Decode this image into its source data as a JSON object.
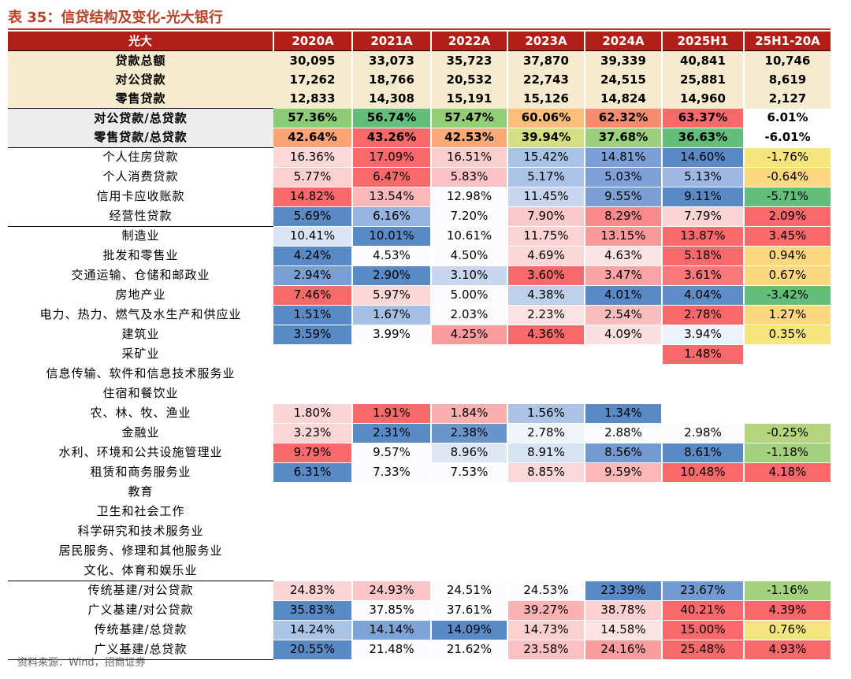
{
  "title": "表 35：信贷结构及变化-光大银行",
  "source": "资料来源：Wind，招商证券",
  "colors": {
    "header_bg": "#b21f19",
    "summary_bg": "#f7ebcf",
    "title_color": "#b5432b",
    "grey_label_bg": "#ececec"
  },
  "header": [
    "光大",
    "2020A",
    "2021A",
    "2022A",
    "2023A",
    "2024A",
    "2025H1",
    "25H1-20A"
  ],
  "rows": [
    {
      "label": "贷款总额",
      "kind": "sum",
      "cells": [
        [
          "30,095",
          ""
        ],
        [
          "33,073",
          ""
        ],
        [
          "35,723",
          ""
        ],
        [
          "37,870",
          ""
        ],
        [
          "39,339",
          ""
        ],
        [
          "40,841",
          ""
        ],
        [
          "10,746",
          ""
        ]
      ]
    },
    {
      "label": "对公贷款",
      "kind": "sum",
      "cells": [
        [
          "17,262",
          ""
        ],
        [
          "18,766",
          ""
        ],
        [
          "20,532",
          ""
        ],
        [
          "22,743",
          ""
        ],
        [
          "24,515",
          ""
        ],
        [
          "25,881",
          ""
        ],
        [
          "8,619",
          ""
        ]
      ]
    },
    {
      "label": "零售贷款",
      "kind": "sum",
      "cells": [
        [
          "12,833",
          ""
        ],
        [
          "14,308",
          ""
        ],
        [
          "15,191",
          ""
        ],
        [
          "15,126",
          ""
        ],
        [
          "14,824",
          ""
        ],
        [
          "14,960",
          ""
        ],
        [
          "2,127",
          ""
        ]
      ]
    },
    {
      "label": "对公贷款/总贷款",
      "kind": "grey",
      "cells": [
        [
          "57.36%",
          "#8dcb77"
        ],
        [
          "56.74%",
          "#63be7b"
        ],
        [
          "57.47%",
          "#93cd76"
        ],
        [
          "60.06%",
          "#fcbf7b"
        ],
        [
          "62.32%",
          "#f98b6f"
        ],
        [
          "63.37%",
          "#f8696b"
        ],
        [
          "6.01%",
          "#ffffff"
        ]
      ]
    },
    {
      "label": "零售贷款/总贷款",
      "kind": "grey",
      "cells": [
        [
          "42.64%",
          "#fba476"
        ],
        [
          "43.26%",
          "#f8696b"
        ],
        [
          "42.53%",
          "#fbaa77"
        ],
        [
          "39.94%",
          "#d3df82"
        ],
        [
          "37.68%",
          "#9cd07e"
        ],
        [
          "36.63%",
          "#63be7b"
        ],
        [
          "-6.01%",
          "#ffffff"
        ]
      ]
    },
    {
      "label": "个人住房贷款",
      "cells": [
        [
          "16.36%",
          "#fbd8d9"
        ],
        [
          "17.09%",
          "#f8696b"
        ],
        [
          "16.51%",
          "#fbcfd0"
        ],
        [
          "15.42%",
          "#a9c3e6"
        ],
        [
          "14.81%",
          "#7b9fd6"
        ],
        [
          "14.60%",
          "#5a8ac6"
        ],
        [
          "-1.76%",
          "#f6e57f"
        ]
      ]
    },
    {
      "label": "个人消费贷款",
      "cells": [
        [
          "5.77%",
          "#fbd0d1"
        ],
        [
          "6.47%",
          "#f8696b"
        ],
        [
          "5.83%",
          "#fbc3c5"
        ],
        [
          "5.17%",
          "#abc3e6"
        ],
        [
          "5.03%",
          "#7fa1d7"
        ],
        [
          "5.13%",
          "#9eb8e1"
        ],
        [
          "-0.64%",
          "#fed880"
        ]
      ]
    },
    {
      "label": "信用卡应收账款",
      "cells": [
        [
          "14.82%",
          "#f8696b"
        ],
        [
          "13.54%",
          "#fbb9ba"
        ],
        [
          "12.98%",
          "#fcfcff"
        ],
        [
          "11.45%",
          "#c7d6ee"
        ],
        [
          "9.55%",
          "#7c9fd6"
        ],
        [
          "9.11%",
          "#5a8ac6"
        ],
        [
          "-5.71%",
          "#63be7b"
        ]
      ]
    },
    {
      "label": "经营性贷款",
      "cells": [
        [
          "5.69%",
          "#5a8ac6"
        ],
        [
          "6.16%",
          "#97b3df"
        ],
        [
          "7.20%",
          "#fcfcff"
        ],
        [
          "7.90%",
          "#fbc9cb"
        ],
        [
          "8.29%",
          "#f98a8c"
        ],
        [
          "7.79%",
          "#fbd4d6"
        ],
        [
          "2.09%",
          "#f8696b"
        ]
      ]
    },
    {
      "label": "制造业",
      "kind": "sec",
      "cells": [
        [
          "10.41%",
          "#dbe4f4"
        ],
        [
          "10.01%",
          "#5a8ac6"
        ],
        [
          "10.61%",
          "#fcfcff"
        ],
        [
          "11.75%",
          "#fbd3d4"
        ],
        [
          "13.15%",
          "#f9999b"
        ],
        [
          "13.87%",
          "#f8696b"
        ],
        [
          "3.45%",
          "#f8696b"
        ]
      ]
    },
    {
      "label": "批发和零售业",
      "cells": [
        [
          "4.24%",
          "#5a8ac6"
        ],
        [
          "4.53%",
          "#fcfcff"
        ],
        [
          "4.50%",
          "#fcfcff"
        ],
        [
          "4.69%",
          "#fbd7d8"
        ],
        [
          "4.63%",
          "#fbe3e4"
        ],
        [
          "5.18%",
          "#f8696b"
        ],
        [
          "0.94%",
          "#fed880"
        ]
      ]
    },
    {
      "label": "交通运输、仓储和邮政业",
      "cells": [
        [
          "2.94%",
          "#7a9fd6"
        ],
        [
          "2.90%",
          "#5a8ac6"
        ],
        [
          "3.10%",
          "#c8d7ef"
        ],
        [
          "3.60%",
          "#f8696b"
        ],
        [
          "3.47%",
          "#fba3a5"
        ],
        [
          "3.61%",
          "#f9787a"
        ],
        [
          "0.67%",
          "#fed880"
        ]
      ]
    },
    {
      "label": "房地产业",
      "cells": [
        [
          "7.46%",
          "#f8696b"
        ],
        [
          "5.97%",
          "#fbd7d8"
        ],
        [
          "5.00%",
          "#fcfcff"
        ],
        [
          "4.38%",
          "#bfd0eb"
        ],
        [
          "4.01%",
          "#5a8ac6"
        ],
        [
          "4.04%",
          "#5f8dc8"
        ],
        [
          "-3.42%",
          "#63be7b"
        ]
      ]
    },
    {
      "label": "电力、热力、燃气及水生产和供应业",
      "cells": [
        [
          "1.51%",
          "#5a8ac6"
        ],
        [
          "1.67%",
          "#a6bfe4"
        ],
        [
          "2.03%",
          "#fcfcff"
        ],
        [
          "2.23%",
          "#fbe3e4"
        ],
        [
          "2.54%",
          "#fabdbe"
        ],
        [
          "2.78%",
          "#f8696b"
        ],
        [
          "1.27%",
          "#fed880"
        ]
      ]
    },
    {
      "label": "建筑业",
      "cells": [
        [
          "3.59%",
          "#5a8ac6"
        ],
        [
          "3.99%",
          "#fcfcff"
        ],
        [
          "4.25%",
          "#fa9b9d"
        ],
        [
          "4.36%",
          "#f8696b"
        ],
        [
          "4.09%",
          "#fbe0e1"
        ],
        [
          "3.94%",
          "#eef2fa"
        ],
        [
          "0.35%",
          "#f6e57f"
        ]
      ]
    },
    {
      "label": "采矿业",
      "cells": [
        [
          "",
          ""
        ],
        [
          "",
          ""
        ],
        [
          "",
          ""
        ],
        [
          "",
          ""
        ],
        [
          "",
          ""
        ],
        [
          "1.48%",
          "#f8696b"
        ],
        [
          "",
          ""
        ]
      ]
    },
    {
      "label": "信息传输、软件和信息技术服务业",
      "cells": [
        [
          "",
          ""
        ],
        [
          "",
          ""
        ],
        [
          "",
          ""
        ],
        [
          "",
          ""
        ],
        [
          "",
          ""
        ],
        [
          "",
          ""
        ],
        [
          "",
          ""
        ]
      ]
    },
    {
      "label": "住宿和餐饮业",
      "cells": [
        [
          "",
          ""
        ],
        [
          "",
          ""
        ],
        [
          "",
          ""
        ],
        [
          "",
          ""
        ],
        [
          "",
          ""
        ],
        [
          "",
          ""
        ],
        [
          "",
          ""
        ]
      ]
    },
    {
      "label": "农、林、牧、渔业",
      "cells": [
        [
          "1.80%",
          "#fbd4d5"
        ],
        [
          "1.91%",
          "#f8696b"
        ],
        [
          "1.84%",
          "#fab0b1"
        ],
        [
          "1.56%",
          "#acc3e6"
        ],
        [
          "1.34%",
          "#5a8ac6"
        ],
        [
          "",
          ""
        ],
        [
          "",
          ""
        ]
      ]
    },
    {
      "label": "金融业",
      "cells": [
        [
          "3.23%",
          "#fbd6d7"
        ],
        [
          "2.31%",
          "#5a8ac6"
        ],
        [
          "2.38%",
          "#6a95cb"
        ],
        [
          "2.78%",
          "#f0f4fb"
        ],
        [
          "2.88%",
          "#fcfcff"
        ],
        [
          "2.98%",
          "#fcfcff"
        ],
        [
          "-0.25%",
          "#b4d57e"
        ]
      ]
    },
    {
      "label": "水利、环境和公共设施管理业",
      "cells": [
        [
          "9.79%",
          "#f8696b"
        ],
        [
          "9.57%",
          "#fcfcff"
        ],
        [
          "8.96%",
          "#dfe7f5"
        ],
        [
          "8.91%",
          "#d7e2f3"
        ],
        [
          "8.56%",
          "#7399d1"
        ],
        [
          "8.61%",
          "#5a8ac6"
        ],
        [
          "-1.18%",
          "#a5d07e"
        ]
      ]
    },
    {
      "label": "租赁和商务服务业",
      "cells": [
        [
          "6.31%",
          "#5a8ac6"
        ],
        [
          "7.33%",
          "#fcfcff"
        ],
        [
          "7.53%",
          "#fcfcff"
        ],
        [
          "8.85%",
          "#fbd8d9"
        ],
        [
          "9.59%",
          "#fab8b9"
        ],
        [
          "10.48%",
          "#f8696b"
        ],
        [
          "4.18%",
          "#f8696b"
        ]
      ]
    },
    {
      "label": "教育",
      "cells": [
        [
          "",
          ""
        ],
        [
          "",
          ""
        ],
        [
          "",
          ""
        ],
        [
          "",
          ""
        ],
        [
          "",
          ""
        ],
        [
          "",
          ""
        ],
        [
          "",
          ""
        ]
      ]
    },
    {
      "label": "卫生和社会工作",
      "cells": [
        [
          "",
          ""
        ],
        [
          "",
          ""
        ],
        [
          "",
          ""
        ],
        [
          "",
          ""
        ],
        [
          "",
          ""
        ],
        [
          "",
          ""
        ],
        [
          "",
          ""
        ]
      ]
    },
    {
      "label": "科学研究和技术服务业",
      "cells": [
        [
          "",
          ""
        ],
        [
          "",
          ""
        ],
        [
          "",
          ""
        ],
        [
          "",
          ""
        ],
        [
          "",
          ""
        ],
        [
          "",
          ""
        ],
        [
          "",
          ""
        ]
      ]
    },
    {
      "label": "居民服务、修理和其他服务业",
      "cells": [
        [
          "",
          ""
        ],
        [
          "",
          ""
        ],
        [
          "",
          ""
        ],
        [
          "",
          ""
        ],
        [
          "",
          ""
        ],
        [
          "",
          ""
        ],
        [
          "",
          ""
        ]
      ]
    },
    {
      "label": "文化、体育和娱乐业",
      "cells": [
        [
          "",
          ""
        ],
        [
          "",
          ""
        ],
        [
          "",
          ""
        ],
        [
          "",
          ""
        ],
        [
          "",
          ""
        ],
        [
          "",
          ""
        ],
        [
          "",
          ""
        ]
      ]
    },
    {
      "label": "传统基建/对公贷款",
      "kind": "sec",
      "cells": [
        [
          "24.83%",
          "#fbd4d5"
        ],
        [
          "24.93%",
          "#fbc6c7"
        ],
        [
          "24.51%",
          "#fcfcff"
        ],
        [
          "24.53%",
          "#fcfcff"
        ],
        [
          "23.39%",
          "#5a8ac6"
        ],
        [
          "23.67%",
          "#7399d1"
        ],
        [
          "-1.16%",
          "#a5d07e"
        ]
      ]
    },
    {
      "label": "广义基建/对公贷款",
      "cells": [
        [
          "35.83%",
          "#5a8ac6"
        ],
        [
          "37.85%",
          "#fcfcff"
        ],
        [
          "37.61%",
          "#fcfcff"
        ],
        [
          "39.27%",
          "#fbb2b3"
        ],
        [
          "38.78%",
          "#fbd0d1"
        ],
        [
          "40.21%",
          "#f8696b"
        ],
        [
          "4.39%",
          "#f8696b"
        ]
      ]
    },
    {
      "label": "传统基建/总贷款",
      "cells": [
        [
          "14.24%",
          "#a9c2e6"
        ],
        [
          "14.14%",
          "#7fa2d7"
        ],
        [
          "14.09%",
          "#5a8ac6"
        ],
        [
          "14.73%",
          "#fbd0d1"
        ],
        [
          "14.58%",
          "#fbe3e4"
        ],
        [
          "15.00%",
          "#f8696b"
        ],
        [
          "0.76%",
          "#f6e57f"
        ]
      ]
    },
    {
      "label": "广义基建/总贷款",
      "cells": [
        [
          "20.55%",
          "#5a8ac6"
        ],
        [
          "21.48%",
          "#fcfcff"
        ],
        [
          "21.62%",
          "#fcfcff"
        ],
        [
          "23.58%",
          "#fbc0c1"
        ],
        [
          "24.16%",
          "#fa9d9f"
        ],
        [
          "25.48%",
          "#f8696b"
        ],
        [
          "4.93%",
          "#f8696b"
        ]
      ]
    }
  ]
}
